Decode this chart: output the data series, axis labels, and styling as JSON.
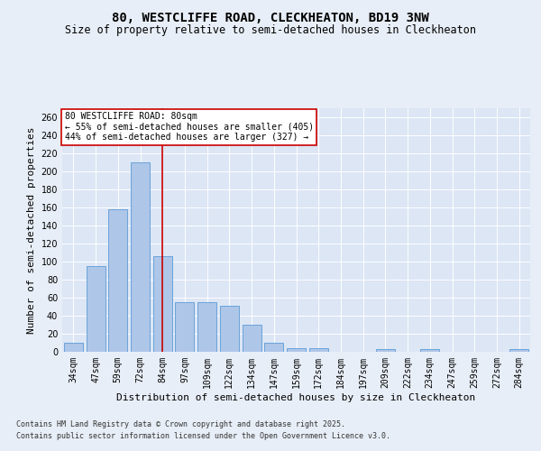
{
  "title": "80, WESTCLIFFE ROAD, CLECKHEATON, BD19 3NW",
  "subtitle": "Size of property relative to semi-detached houses in Cleckheaton",
  "xlabel": "Distribution of semi-detached houses by size in Cleckheaton",
  "ylabel": "Number of semi-detached properties",
  "categories": [
    "34sqm",
    "47sqm",
    "59sqm",
    "72sqm",
    "84sqm",
    "97sqm",
    "109sqm",
    "122sqm",
    "134sqm",
    "147sqm",
    "159sqm",
    "172sqm",
    "184sqm",
    "197sqm",
    "209sqm",
    "222sqm",
    "234sqm",
    "247sqm",
    "259sqm",
    "272sqm",
    "284sqm"
  ],
  "values": [
    10,
    95,
    158,
    210,
    106,
    55,
    55,
    51,
    30,
    10,
    4,
    4,
    0,
    0,
    3,
    0,
    3,
    0,
    0,
    0,
    3
  ],
  "bar_color": "#aec6e8",
  "bar_edge_color": "#5b9bd5",
  "highlight_index": 4,
  "highlight_color": "#cc0000",
  "ylim": [
    0,
    270
  ],
  "yticks": [
    0,
    20,
    40,
    60,
    80,
    100,
    120,
    140,
    160,
    180,
    200,
    220,
    240,
    260
  ],
  "annotation_title": "80 WESTCLIFFE ROAD: 80sqm",
  "annotation_line1": "← 55% of semi-detached houses are smaller (405)",
  "annotation_line2": "44% of semi-detached houses are larger (327) →",
  "annotation_box_color": "#ffffff",
  "annotation_box_edge": "#cc0000",
  "footer_line1": "Contains HM Land Registry data © Crown copyright and database right 2025.",
  "footer_line2": "Contains public sector information licensed under the Open Government Licence v3.0.",
  "bg_color": "#e8eef7",
  "plot_bg": "#dce6f5",
  "grid_color": "#ffffff",
  "title_fontsize": 10,
  "subtitle_fontsize": 8.5,
  "axis_label_fontsize": 8,
  "tick_fontsize": 7,
  "annotation_fontsize": 7,
  "footer_fontsize": 6
}
